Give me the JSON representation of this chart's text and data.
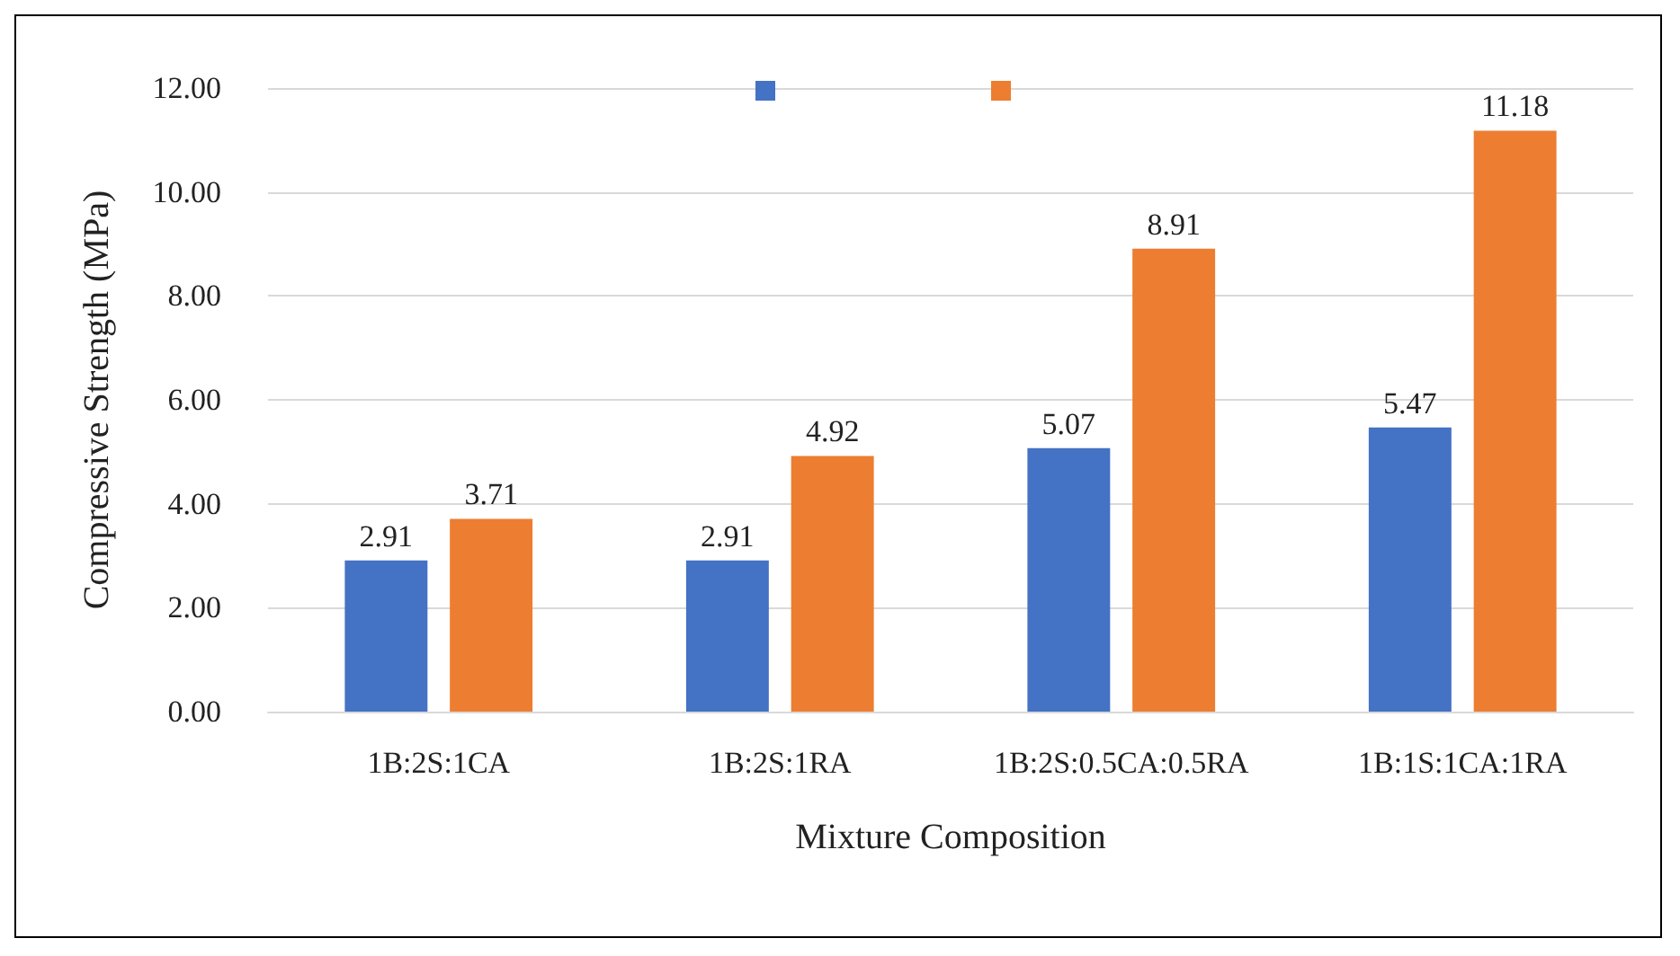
{
  "chart_data": {
    "type": "bar",
    "xlabel": "Mixture Composition",
    "ylabel": "Compressive Strength (MPa)",
    "categories": [
      "1B:2S:1CA",
      "1B:2S:1RA",
      "1B:2S:0.5CA:0.5RA",
      "1B:1S:1CA:1RA"
    ],
    "series": [
      {
        "color": "#4472c4",
        "values": [
          2.91,
          2.91,
          5.07,
          5.47
        ]
      },
      {
        "color": "#ed7d31",
        "values": [
          3.71,
          4.92,
          8.91,
          11.18
        ]
      }
    ],
    "ylim": [
      0,
      12
    ],
    "yticks": [
      {
        "value": 0,
        "label": "0.00"
      },
      {
        "value": 2,
        "label": "2.00"
      },
      {
        "value": 4,
        "label": "4.00"
      },
      {
        "value": 6,
        "label": "6.00"
      },
      {
        "value": 8,
        "label": "8.00"
      },
      {
        "value": 10,
        "label": "10.00"
      },
      {
        "value": 12,
        "label": "12.00"
      }
    ],
    "grid": "y",
    "data_labels": true
  }
}
